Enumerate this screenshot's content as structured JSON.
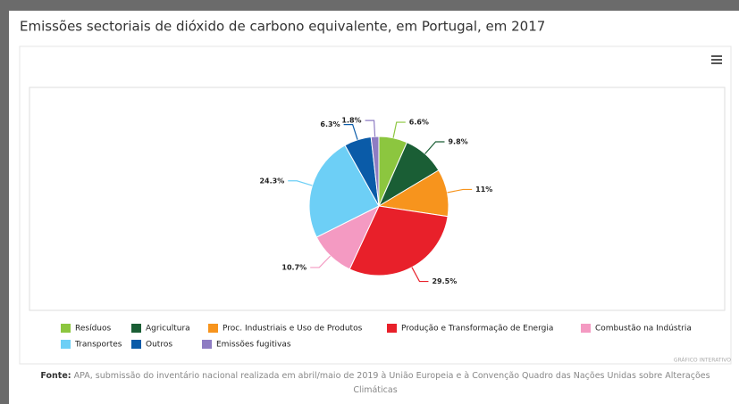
{
  "chart_data": {
    "type": "pie",
    "title": "Emissões sectoriais de dióxido de carbono equivalente, em Portugal, em 2017",
    "categories": [
      "Resíduos",
      "Agricultura",
      "Proc. Industriais e Uso de Produtos",
      "Produção e Transformação de Energia",
      "Combustão na Indústria",
      "Transportes",
      "Outros",
      "Emissões fugitivas"
    ],
    "values": [
      6.6,
      9.8,
      11,
      29.5,
      10.7,
      24.3,
      6.3,
      1.8
    ],
    "value_labels": [
      "6.6%",
      "9.8%",
      "11%",
      "29.5%",
      "10.7%",
      "24.3%",
      "6.3%",
      "1.8%"
    ],
    "colors": [
      "#8cc63f",
      "#1a5e35",
      "#f7941d",
      "#e8202a",
      "#f49ac2",
      "#6dcff6",
      "#0a5ba8",
      "#8e7cc3"
    ],
    "legend": "bottom"
  },
  "badge": "GRÁFICO INTERATIVO",
  "source_label": "Fonte:",
  "source": "APA, submissão do inventário nacional realizada em abril/maio de 2019 à União Europeia e à Convenção Quadro das Nações Unidas sobre Alterações Climáticas"
}
